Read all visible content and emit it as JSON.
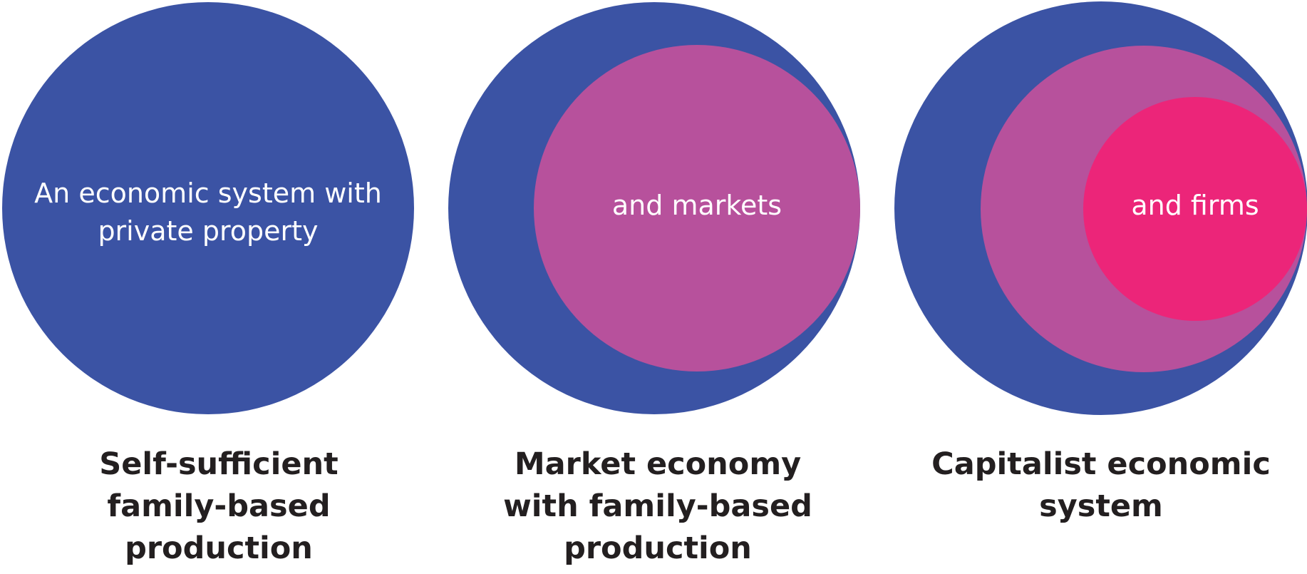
{
  "colors": {
    "private_property": "#3b53a4",
    "markets": "#b7519c",
    "firms": "#ec2579",
    "circle_text": "#ffffff",
    "caption_text": "#231f20"
  },
  "panels": [
    {
      "circle_labels": {
        "property_line1": "An economic system with",
        "property_line2": "private property"
      },
      "caption_lines": [
        "Self-sufficient",
        "family-based",
        "production"
      ]
    },
    {
      "circle_labels": {
        "markets": "and markets"
      },
      "caption_lines": [
        "Market economy",
        "with family-based",
        "production"
      ]
    },
    {
      "circle_labels": {
        "firms": "and firms"
      },
      "caption_lines": [
        "Capitalist economic",
        "system"
      ]
    }
  ]
}
